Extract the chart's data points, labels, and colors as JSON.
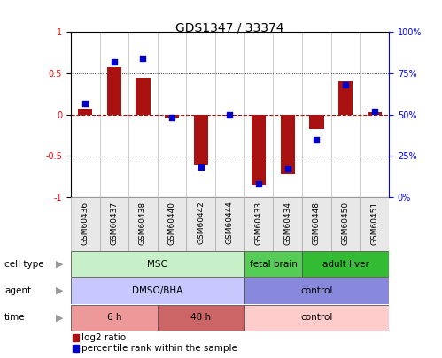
{
  "title": "GDS1347 / 33374",
  "samples": [
    "GSM60436",
    "GSM60437",
    "GSM60438",
    "GSM60440",
    "GSM60442",
    "GSM60444",
    "GSM60433",
    "GSM60434",
    "GSM60448",
    "GSM60450",
    "GSM60451"
  ],
  "log2_ratio": [
    0.07,
    0.58,
    0.45,
    -0.04,
    -0.62,
    -0.02,
    -0.85,
    -0.72,
    -0.18,
    0.4,
    0.03
  ],
  "percentile_rank": [
    57,
    82,
    84,
    48,
    18,
    50,
    8,
    17,
    35,
    68,
    52
  ],
  "cell_type_groups": [
    {
      "label": "MSC",
      "start": 0,
      "end": 6,
      "color": "#c8f0c8"
    },
    {
      "label": "fetal brain",
      "start": 6,
      "end": 8,
      "color": "#55cc55"
    },
    {
      "label": "adult liver",
      "start": 8,
      "end": 11,
      "color": "#33bb33"
    }
  ],
  "agent_groups": [
    {
      "label": "DMSO/BHA",
      "start": 0,
      "end": 6,
      "color": "#c8c8ff"
    },
    {
      "label": "control",
      "start": 6,
      "end": 11,
      "color": "#8888dd"
    }
  ],
  "time_groups": [
    {
      "label": "6 h",
      "start": 0,
      "end": 3,
      "color": "#ee9999"
    },
    {
      "label": "48 h",
      "start": 3,
      "end": 6,
      "color": "#cc6666"
    },
    {
      "label": "control",
      "start": 6,
      "end": 11,
      "color": "#ffcccc"
    }
  ],
  "row_labels": [
    "cell type",
    "agent",
    "time"
  ],
  "bar_color": "#aa1111",
  "dot_color": "#0000cc",
  "bg_color": "#ffffff",
  "sample_bg_color": "#e0e0e0",
  "ylim_left": [
    -1,
    1
  ],
  "ylim_right": [
    0,
    100
  ],
  "yticks_left": [
    -1,
    -0.5,
    0,
    0.5,
    1
  ],
  "ytick_labels_left": [
    "-1",
    "-0.5",
    "0",
    "0.5",
    "1"
  ],
  "yticks_right": [
    0,
    25,
    50,
    75,
    100
  ],
  "ytick_labels_right": [
    "0%",
    "25%",
    "50%",
    "75%",
    "100%"
  ]
}
